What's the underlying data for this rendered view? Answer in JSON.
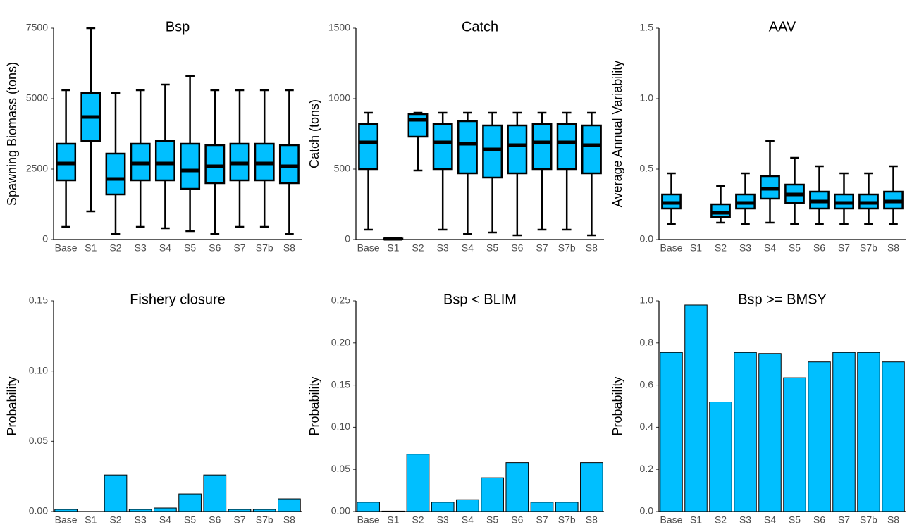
{
  "chart_data": [
    {
      "type": "box",
      "title": "Bsp",
      "y_label": "Spawning Biomass (tons)",
      "color": "#00bfff",
      "categories": [
        "Base",
        "S1",
        "S2",
        "S3",
        "S4",
        "S5",
        "S6",
        "S7",
        "S7b",
        "S8"
      ],
      "min": [
        450,
        1000,
        200,
        450,
        400,
        300,
        200,
        450,
        450,
        200
      ],
      "q1": [
        2100,
        3500,
        1600,
        2100,
        2100,
        1800,
        2000,
        2100,
        2100,
        2000
      ],
      "median": [
        2700,
        4350,
        2150,
        2700,
        2700,
        2450,
        2600,
        2700,
        2700,
        2600
      ],
      "q3": [
        3400,
        5200,
        3050,
        3400,
        3500,
        3400,
        3350,
        3400,
        3400,
        3350
      ],
      "max": [
        5300,
        7500,
        5200,
        5300,
        5500,
        5800,
        5300,
        5300,
        5300,
        5300
      ],
      "ylim": [
        0,
        7500
      ],
      "yticks": [
        0,
        2500,
        5000,
        7500
      ]
    },
    {
      "type": "box",
      "title": "Catch",
      "y_label": "Catch (tons)",
      "color": "#00bfff",
      "categories": [
        "Base",
        "S1",
        "S2",
        "S3",
        "S4",
        "S5",
        "S6",
        "S7",
        "S7b",
        "S8"
      ],
      "min": [
        70,
        0,
        490,
        70,
        40,
        50,
        30,
        70,
        70,
        30
      ],
      "q1": [
        500,
        3,
        730,
        500,
        470,
        440,
        470,
        500,
        500,
        470
      ],
      "median": [
        690,
        5,
        850,
        690,
        680,
        640,
        670,
        690,
        690,
        670
      ],
      "q3": [
        820,
        7,
        890,
        820,
        840,
        810,
        810,
        820,
        820,
        810
      ],
      "max": [
        900,
        10,
        900,
        900,
        900,
        900,
        900,
        900,
        900,
        900
      ],
      "ylim": [
        0,
        1500
      ],
      "yticks": [
        0,
        500,
        1000,
        1500
      ]
    },
    {
      "type": "box",
      "title": "AAV",
      "y_label": "Average Annual Variability",
      "color": "#00bfff",
      "categories": [
        "Base",
        "S1",
        "S2",
        "S3",
        "S4",
        "S5",
        "S6",
        "S7",
        "S7b",
        "S8"
      ],
      "min": [
        0.11,
        null,
        0.12,
        0.11,
        0.12,
        0.11,
        0.11,
        0.11,
        0.11,
        0.11
      ],
      "q1": [
        0.22,
        null,
        0.16,
        0.22,
        0.29,
        0.26,
        0.22,
        0.22,
        0.22,
        0.22
      ],
      "median": [
        0.26,
        null,
        0.19,
        0.26,
        0.36,
        0.32,
        0.27,
        0.26,
        0.26,
        0.27
      ],
      "q3": [
        0.32,
        null,
        0.25,
        0.32,
        0.45,
        0.39,
        0.34,
        0.32,
        0.32,
        0.34
      ],
      "max": [
        0.47,
        null,
        0.38,
        0.47,
        0.7,
        0.58,
        0.52,
        0.47,
        0.47,
        0.52
      ],
      "ylim": [
        0,
        1.5
      ],
      "yticks": [
        {
          "value": 0,
          "label": "0.0"
        },
        0.5,
        {
          "value": 1,
          "label": "1.0"
        },
        1.5
      ]
    },
    {
      "type": "bar",
      "title": "Fishery closure",
      "y_label": "Probability",
      "color": "#00bfff",
      "categories": [
        "Base",
        "S1",
        "S2",
        "S3",
        "S4",
        "S5",
        "S6",
        "S7",
        "S7b",
        "S8"
      ],
      "values": [
        0.0015,
        0,
        0.026,
        0.0015,
        0.0025,
        0.0125,
        0.026,
        0.0015,
        0.0015,
        0.009
      ],
      "ylim": [
        0,
        0.15
      ],
      "yticks": [
        {
          "value": 0,
          "label": "0.00"
        },
        0.05,
        {
          "value": 0.1,
          "label": "0.10"
        },
        0.15
      ]
    },
    {
      "type": "bar",
      "title": "Bsp < BLIM",
      "y_label": "Probability",
      "color": "#00bfff",
      "categories": [
        "Base",
        "S1",
        "S2",
        "S3",
        "S4",
        "S5",
        "S6",
        "S7",
        "S7b",
        "S8"
      ],
      "values": [
        0.011,
        0.0005,
        0.068,
        0.011,
        0.014,
        0.04,
        0.058,
        0.011,
        0.011,
        0.058
      ],
      "ylim": [
        0,
        0.25
      ],
      "yticks": [
        {
          "value": 0,
          "label": "0.00"
        },
        0.05,
        {
          "value": 0.1,
          "label": "0.10"
        },
        0.15,
        {
          "value": 0.2,
          "label": "0.20"
        },
        0.25
      ]
    },
    {
      "type": "bar",
      "title": "Bsp >= BMSY",
      "y_label": "Probability",
      "color": "#00bfff",
      "categories": [
        "Base",
        "S1",
        "S2",
        "S3",
        "S4",
        "S5",
        "S6",
        "S7",
        "S7b",
        "S8"
      ],
      "values": [
        0.755,
        0.98,
        0.52,
        0.755,
        0.75,
        0.635,
        0.71,
        0.755,
        0.755,
        0.71
      ],
      "ylim": [
        0,
        1
      ],
      "yticks": [
        {
          "value": 0,
          "label": "0.0"
        },
        0.2,
        0.4,
        0.6,
        0.8,
        {
          "value": 1,
          "label": "1.0"
        }
      ]
    }
  ]
}
